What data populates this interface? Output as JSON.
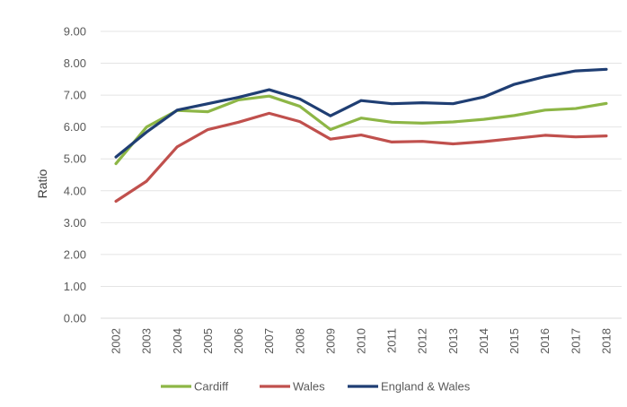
{
  "chart_data": {
    "type": "line",
    "title": "",
    "xlabel": "",
    "ylabel": "Ratio",
    "ylim": [
      0,
      9
    ],
    "y_ticks": [
      "0.00",
      "1.00",
      "2.00",
      "3.00",
      "4.00",
      "5.00",
      "6.00",
      "7.00",
      "8.00",
      "9.00"
    ],
    "grid": true,
    "legend_position": "bottom",
    "categories": [
      "2002",
      "2003",
      "2004",
      "2005",
      "2006",
      "2007",
      "2008",
      "2009",
      "2010",
      "2011",
      "2012",
      "2013",
      "2014",
      "2015",
      "2016",
      "2017",
      "2018"
    ],
    "series": [
      {
        "name": "Cardiff",
        "color": "#8db646",
        "values": [
          4.85,
          6.0,
          6.52,
          6.48,
          6.85,
          6.97,
          6.65,
          5.92,
          6.28,
          6.15,
          6.12,
          6.16,
          6.24,
          6.36,
          6.53,
          6.58,
          6.74
        ]
      },
      {
        "name": "Wales",
        "color": "#c0504d",
        "values": [
          3.67,
          4.3,
          5.38,
          5.92,
          6.15,
          6.43,
          6.17,
          5.62,
          5.75,
          5.53,
          5.55,
          5.47,
          5.54,
          5.64,
          5.74,
          5.69,
          5.72
        ]
      },
      {
        "name": "England & Wales",
        "color": "#1f3e73",
        "values": [
          5.06,
          5.84,
          6.53,
          6.73,
          6.93,
          7.17,
          6.88,
          6.35,
          6.83,
          6.73,
          6.76,
          6.73,
          6.94,
          7.34,
          7.58,
          7.76,
          7.81
        ]
      }
    ]
  }
}
